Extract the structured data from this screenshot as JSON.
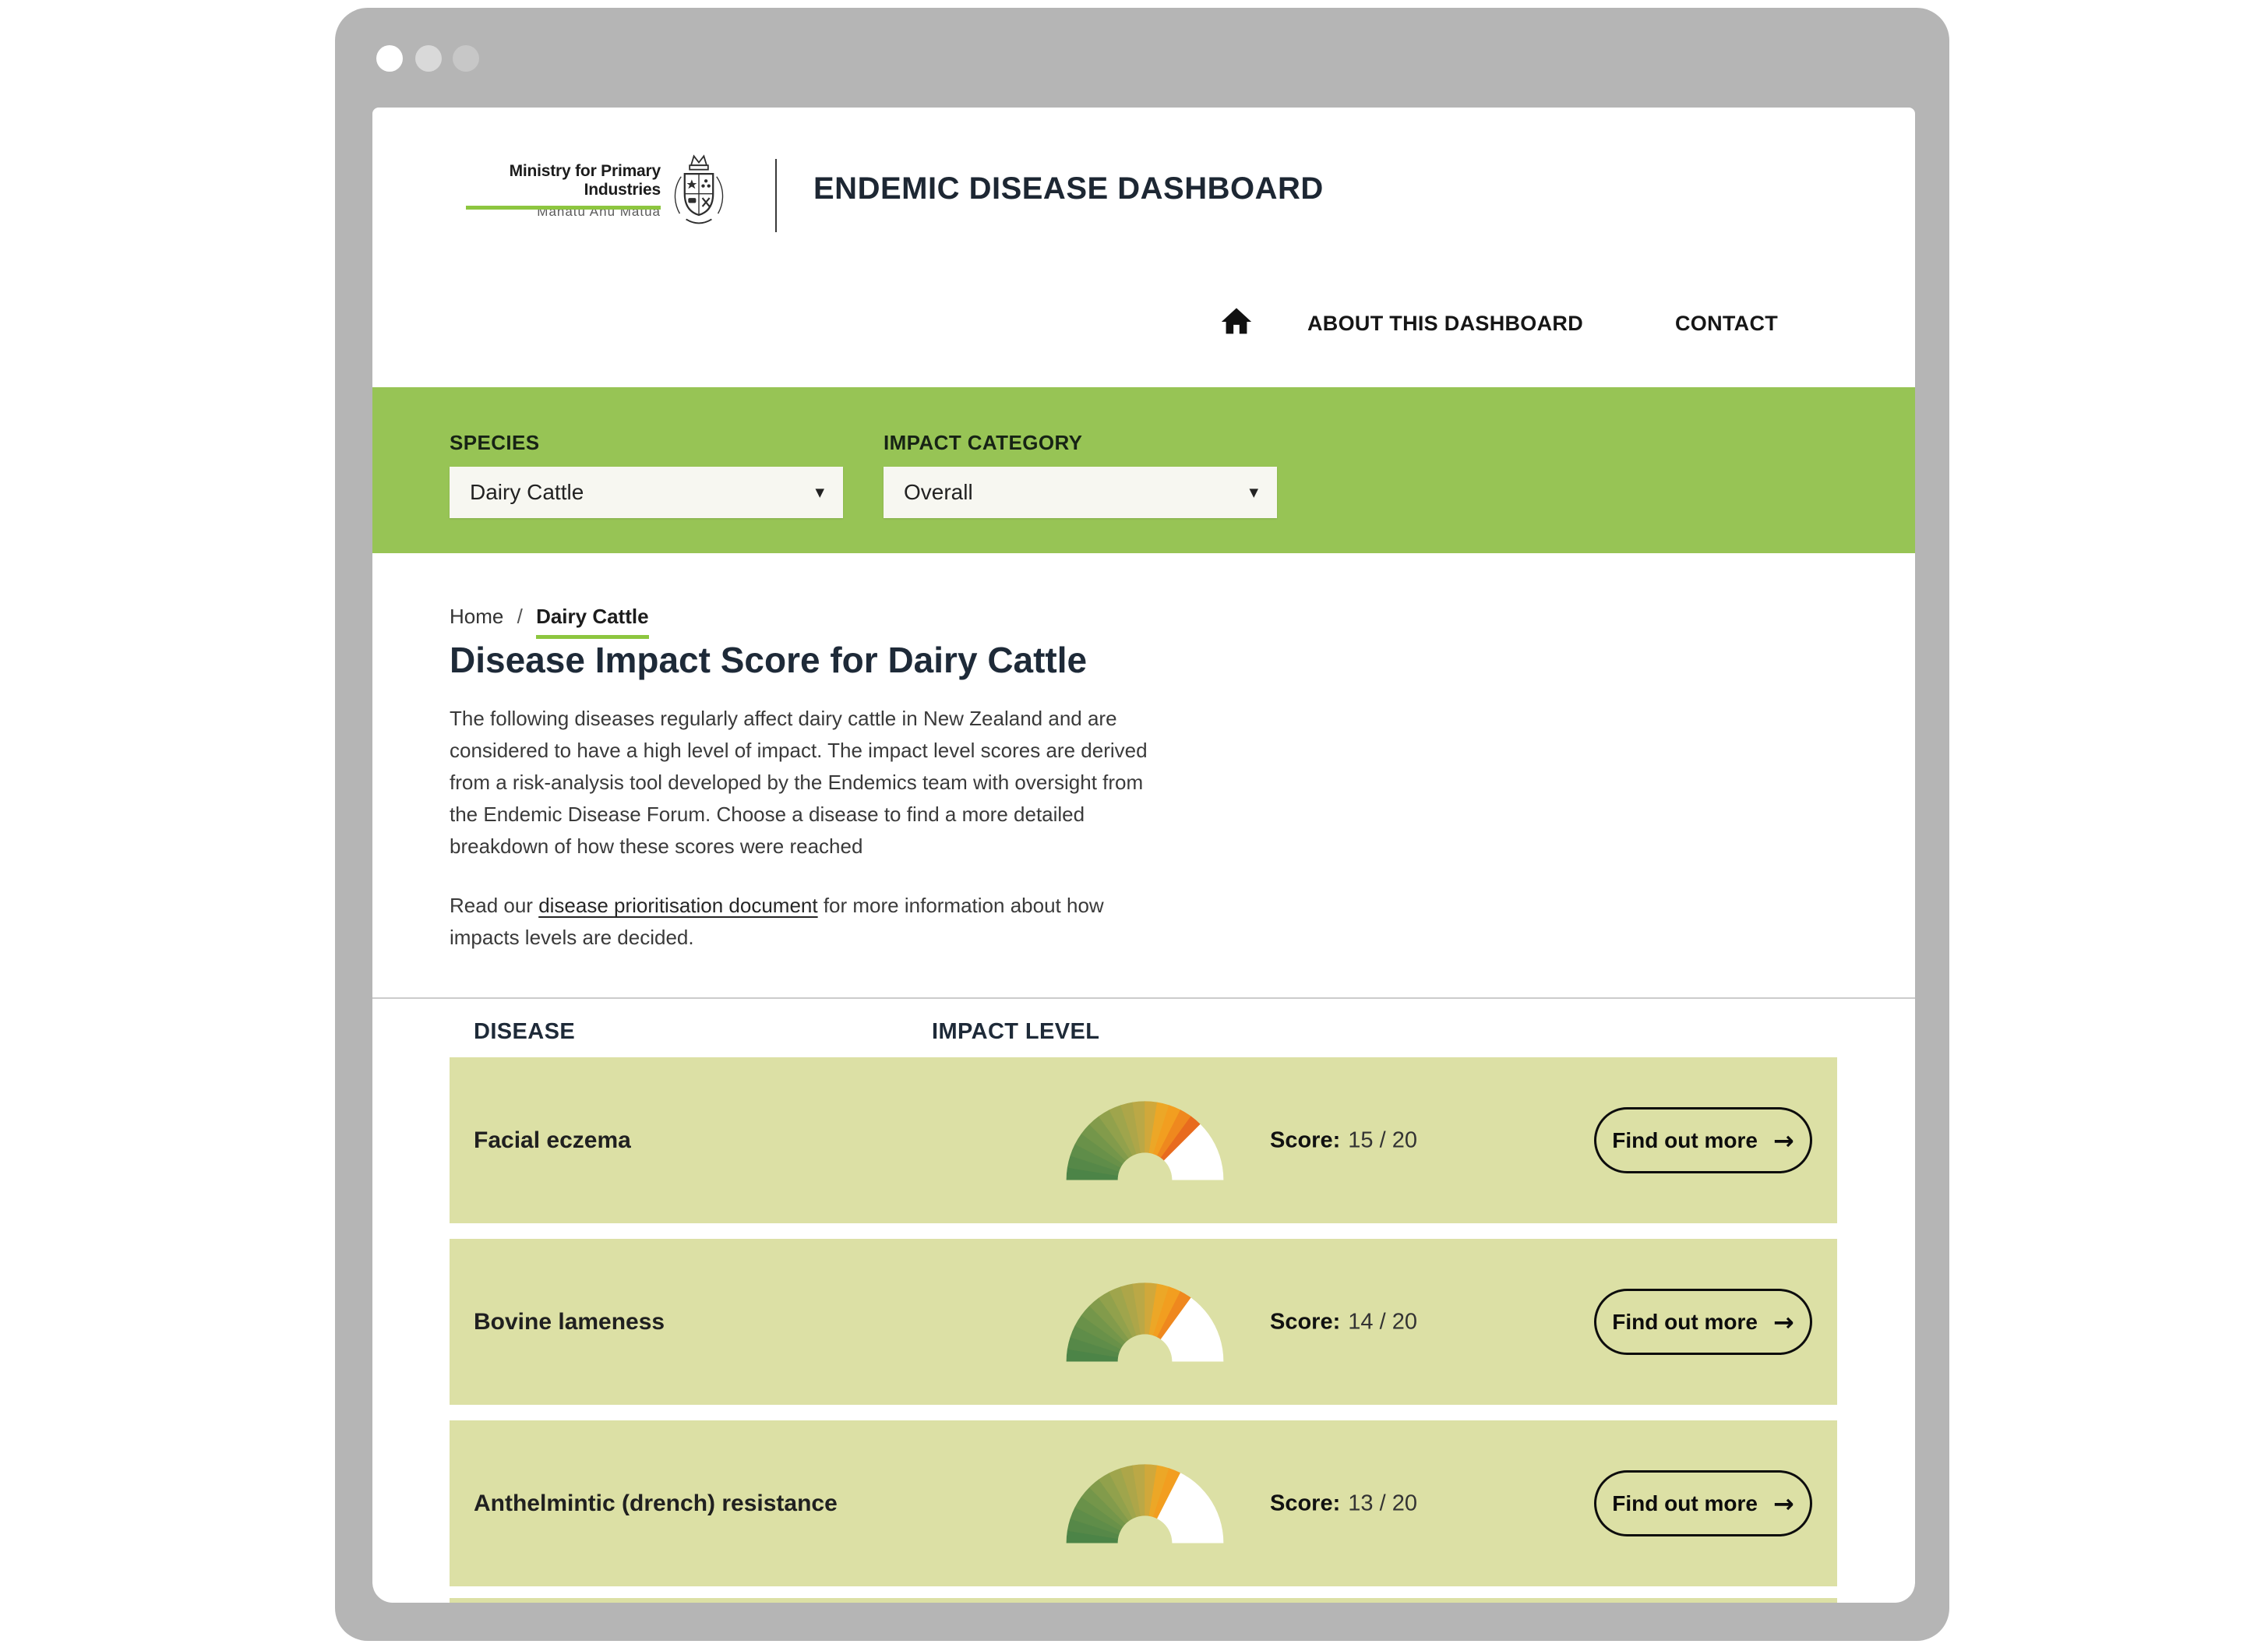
{
  "theme": {
    "chrome_grey": "#b5b5b5",
    "green_bar": "#97c455",
    "accent_green": "#8dc63f",
    "row_bg": "#dce0a5",
    "ink": "#1e2a38"
  },
  "header": {
    "logo_line1": "Ministry for Primary Industries",
    "logo_line2": "Manatū Ahu Matua",
    "title": "ENDEMIC DISEASE DASHBOARD",
    "nav": {
      "about": "ABOUT THIS DASHBOARD",
      "contact": "CONTACT"
    }
  },
  "filters": {
    "species_label": "SPECIES",
    "species_value": "Dairy Cattle",
    "impact_label": "IMPACT CATEGORY",
    "impact_value": "Overall",
    "caret": "▼"
  },
  "breadcrumb": {
    "home": "Home",
    "separator": "/",
    "current": "Dairy Cattle"
  },
  "page": {
    "heading": "Disease Impact Score for Dairy Cattle",
    "intro_lines": [
      "The following diseases regularly affect dairy cattle in New Zealand and are",
      "considered to have a high level of impact. The impact level scores are derived",
      "from a risk-analysis tool developed by the Endemics team with oversight from",
      "the Endemic Disease Forum. Choose a disease to find a more detailed",
      "breakdown of how these scores were reached"
    ],
    "read_prefix": "Read our ",
    "link_text": "disease prioritisation document",
    "read_suffix": " for more information about how\nimpacts levels are decided."
  },
  "table": {
    "col1": "DISEASE",
    "col2": "IMPACT LEVEL"
  },
  "rows": [
    {
      "name": "Facial eczema",
      "score_label": "Score:",
      "score": 15,
      "score_text": "15 / 20",
      "button": "Find out more",
      "arrow": "→"
    },
    {
      "name": "Bovine lameness",
      "score_label": "Score:",
      "score": 14,
      "score_text": "14 / 20",
      "button": "Find out more",
      "arrow": "→"
    },
    {
      "name": "Anthelmintic (drench) resistance",
      "score_label": "Score:",
      "score": 13,
      "score_text": "13 / 20",
      "button": "Find out more",
      "arrow": "→"
    }
  ],
  "gauge": {
    "segments": 20,
    "unfilled_color": "#ffffff",
    "palette": [
      [
        0.0,
        "#4c8447"
      ],
      [
        0.2,
        "#71954a"
      ],
      [
        0.35,
        "#9aa44d"
      ],
      [
        0.5,
        "#c2a945"
      ],
      [
        0.58,
        "#eda727"
      ],
      [
        0.65,
        "#f49b1e"
      ],
      [
        0.74,
        "#e8691e"
      ],
      [
        0.85,
        "#dd4f1d"
      ],
      [
        1.0,
        "#d23c1b"
      ]
    ]
  },
  "chart_data": [
    {
      "type": "gauge",
      "title": "Facial eczema impact level",
      "value": 15,
      "max": 20
    },
    {
      "type": "gauge",
      "title": "Bovine lameness impact level",
      "value": 14,
      "max": 20
    },
    {
      "type": "gauge",
      "title": "Anthelmintic (drench) resistance impact level",
      "value": 13,
      "max": 20
    }
  ]
}
